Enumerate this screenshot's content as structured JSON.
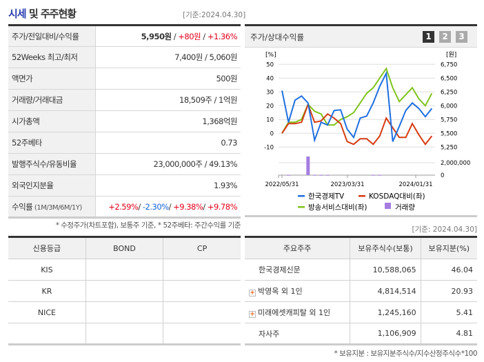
{
  "summary": {
    "title_a": "시세",
    "title_b": " 및 주주현황",
    "date": "[기준:2024.04.30]",
    "rows": [
      {
        "label": "주가/전일대비/수익률",
        "price": "5,950원",
        "sep": " / ",
        "change": "+80원",
        "sep2": " / ",
        "pct": "+1.36%"
      },
      {
        "label": "52Weeks 최고/최저",
        "value": "7,400원 / 5,060원"
      },
      {
        "label": "액면가",
        "value": "500원"
      },
      {
        "label": "거래량/거래대금",
        "value": "18,509주 / 1억원"
      },
      {
        "label": "시가총액",
        "value": "1,368억원"
      },
      {
        "label": "52주베타",
        "value": "0.73"
      },
      {
        "label": "발행주식수/유동비율",
        "value": "23,000,000주 / 49.13%"
      },
      {
        "label": "외국인지분율",
        "value": "1.93%"
      }
    ],
    "returns": {
      "label": "수익률",
      "periods": " (1M/3M/6M/1Y)",
      "r1m": "+2.59%",
      "r3m": "-2.30%",
      "r6m": "+9.38%",
      "r1y": "+9.78%",
      "slash": "/ "
    },
    "footnote": "* 수정주가(차트포함), 보통주 기준, * 52주베타: 주간수익률 기준"
  },
  "chart_panel": {
    "title": "주가/상대수익률",
    "pages": [
      "1",
      "2",
      "3"
    ],
    "active_page": "1",
    "date": "[기준: 2024.04.30]"
  },
  "chart_data": {
    "type": "line",
    "left_unit": "[%]",
    "right_unit": "[원]",
    "left_ticks": [
      "50",
      "40",
      "30",
      "20",
      "10",
      "0",
      "-10"
    ],
    "right_ticks": [
      "6,750",
      "6,500",
      "6,250",
      "6,000",
      "5,750",
      "5,500",
      "5,250"
    ],
    "volume_ticks": [
      "2,000,000",
      "0"
    ],
    "x_ticks": [
      "2022/05/31",
      "2023/03/31",
      "2024/01/31"
    ],
    "ylim": [
      -10,
      50
    ],
    "series": [
      {
        "name": "한국경제TV",
        "color": "#1e6fe0",
        "values": [
          31,
          8,
          24,
          27,
          22,
          -5,
          8,
          6,
          16.5,
          17,
          3,
          -3,
          11,
          12.5,
          22,
          34,
          43.5,
          -6,
          5,
          16.5,
          22,
          18,
          12,
          18
        ]
      },
      {
        "name": "KOSDAQ대비(좌)",
        "color": "#d63a10",
        "values": [
          0,
          7,
          7,
          8,
          21,
          8,
          9,
          14,
          11,
          7,
          -6,
          -8,
          -4,
          -4,
          -8,
          -2,
          11,
          4,
          -3,
          -3,
          7,
          -1,
          -8,
          -2
        ]
      },
      {
        "name": "방송서비스대비(좌)",
        "color": "#7fc31c",
        "values": [
          0,
          8,
          8,
          10,
          21,
          16,
          14,
          6,
          6,
          10,
          12,
          15,
          22,
          29,
          33,
          40,
          47,
          33,
          23,
          28,
          33,
          25,
          20,
          29
        ]
      }
    ],
    "volume": {
      "name": "거래량",
      "color": "#a57de0",
      "values": [
        0,
        30000,
        0,
        0,
        3000000,
        30000,
        30000,
        30000,
        0,
        0,
        0,
        0,
        0,
        0,
        30000,
        30000,
        0,
        0,
        0,
        0,
        0,
        0,
        0,
        0
      ]
    }
  },
  "credit": {
    "headers": [
      "신용등급",
      "BOND",
      "CP"
    ],
    "rows": [
      [
        "KIS",
        "",
        ""
      ],
      [
        "KR",
        "",
        ""
      ],
      [
        "NICE",
        "",
        ""
      ],
      [
        "",
        "",
        ""
      ]
    ]
  },
  "holders": {
    "headers": [
      "주요주주",
      "보유주식수(보통)",
      "보유지분(%)"
    ],
    "rows": [
      {
        "name": "한국경제신문",
        "shares": "10,588,065",
        "pct": "46.04",
        "expand": false
      },
      {
        "name": "박영옥 외 1인",
        "shares": "4,814,514",
        "pct": "20.93",
        "expand": true
      },
      {
        "name": "미래에셋캐피탈 외 1인",
        "shares": "1,245,160",
        "pct": "5.41",
        "expand": true
      },
      {
        "name": "자사주",
        "shares": "1,106,909",
        "pct": "4.81",
        "expand": false
      }
    ],
    "footnote": "* 보유지분 : 보유지분주식수/지수산정주식수*100"
  }
}
